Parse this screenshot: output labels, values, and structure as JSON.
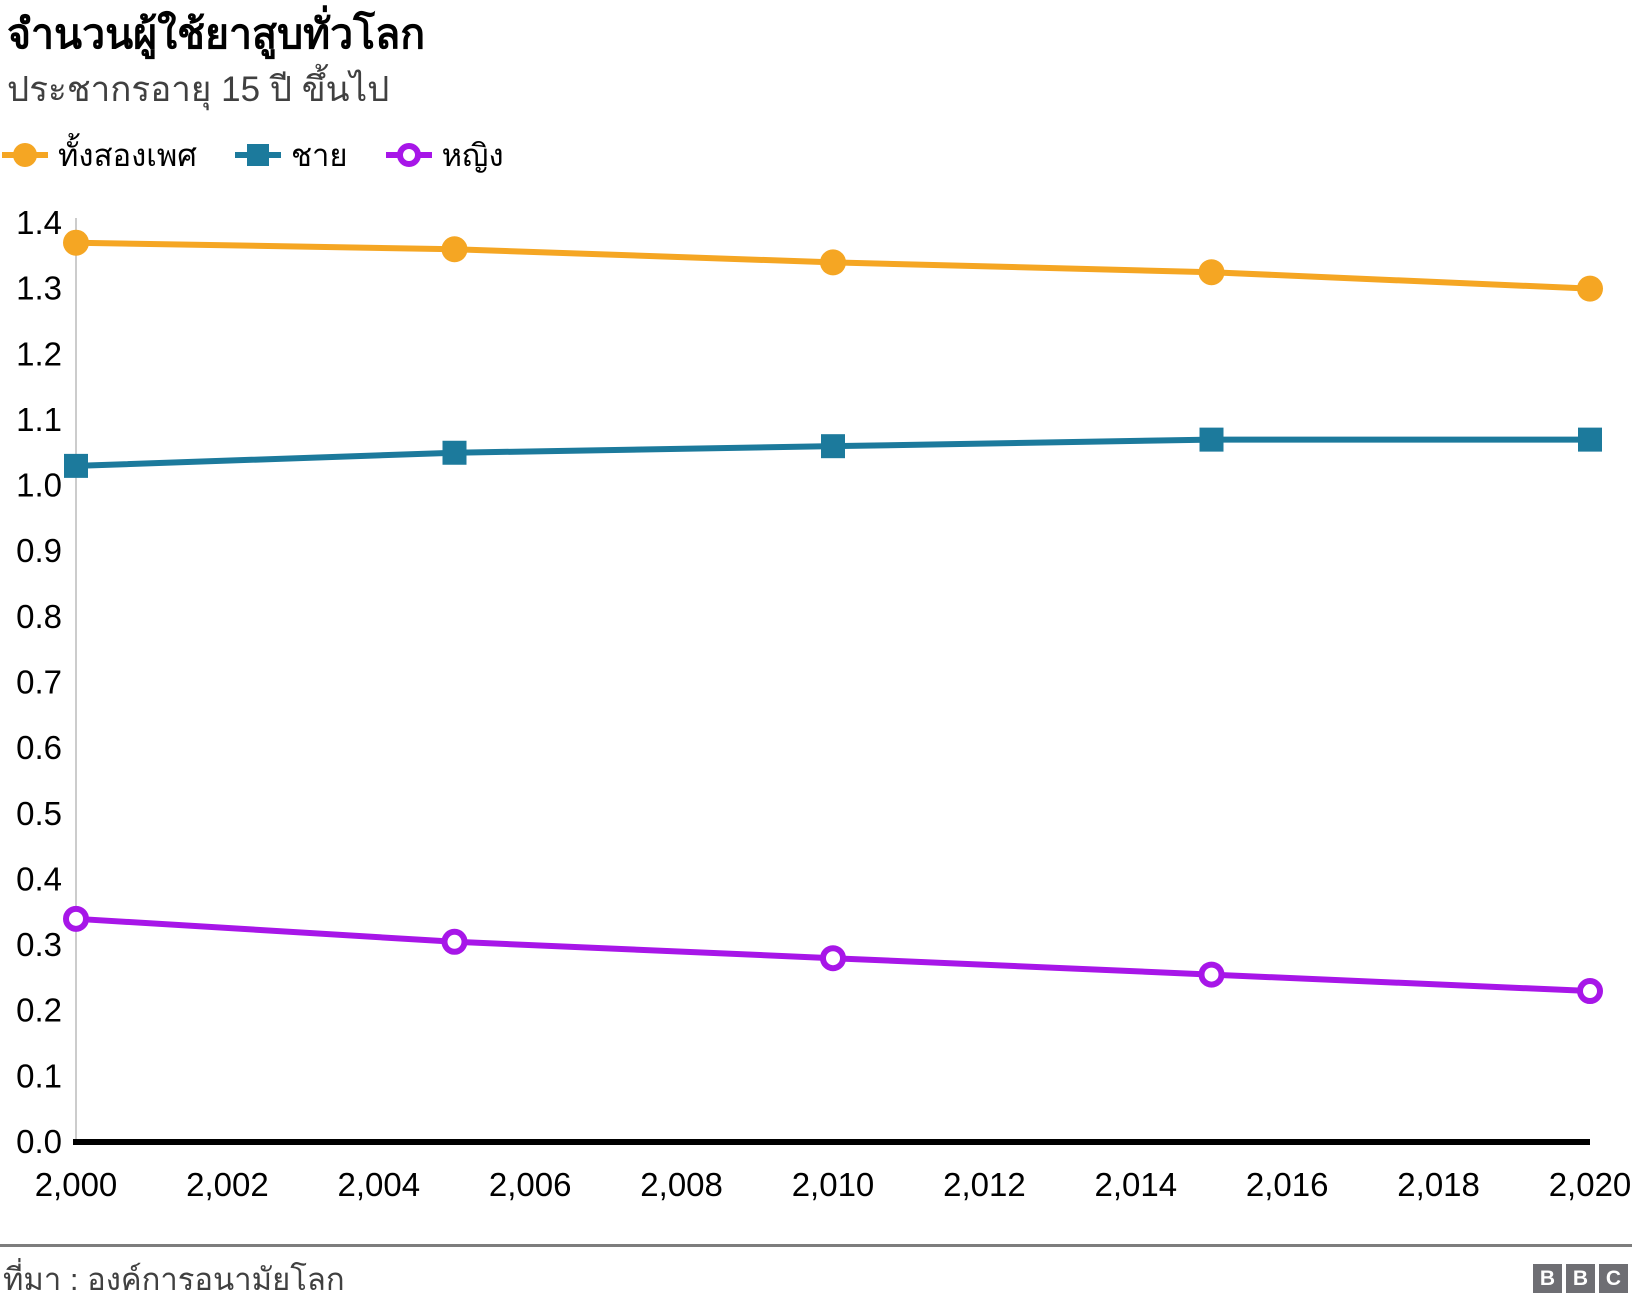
{
  "header": {
    "title": "จำนวนผู้ใช้ยาสูบทั่วโลก",
    "subtitle": "ประชากรอายุ 15 ปี ขึ้นไป"
  },
  "footer": {
    "source": "ที่มา : องค์การอนามัยโลก",
    "logo_letters": [
      "B",
      "B",
      "C"
    ]
  },
  "colors": {
    "both_sexes": "#F5A623",
    "male": "#1C7A9C",
    "female": "#A716E8",
    "y_axis_line": "#CCCCCC",
    "x_axis_line": "#000000",
    "tick_text": "#000000",
    "subtitle_text": "#404040",
    "separator": "#7D7D7D",
    "logo_bg": "#6E6E73"
  },
  "chart_data": {
    "type": "line",
    "title": "จำนวนผู้ใช้ยาสูบทั่วโลก",
    "subtitle": "ประชากรอายุ 15 ปี ขึ้นไป",
    "x": [
      2000,
      2005,
      2010,
      2015,
      2020
    ],
    "series": [
      {
        "name": "ทั้งสองเพศ",
        "marker": "circle-filled",
        "color": "#F5A623",
        "values": [
          1.37,
          1.36,
          1.34,
          1.325,
          1.3
        ]
      },
      {
        "name": "ชาย",
        "marker": "square-filled",
        "color": "#1C7A9C",
        "values": [
          1.03,
          1.05,
          1.06,
          1.07,
          1.07
        ]
      },
      {
        "name": "หญิง",
        "marker": "circle-open",
        "color": "#A716E8",
        "values": [
          0.34,
          0.305,
          0.28,
          0.255,
          0.23
        ]
      }
    ],
    "xlabel": "",
    "ylabel": "",
    "xlim": [
      2000,
      2020
    ],
    "ylim": [
      0,
      1.4
    ],
    "x_tick_step": 2,
    "y_tick_step": 0.1,
    "x_tick_labels": [
      "2,000",
      "2,002",
      "2,004",
      "2,006",
      "2,008",
      "2,010",
      "2,012",
      "2,014",
      "2,016",
      "2,018",
      "2,020"
    ],
    "y_tick_labels": [
      "0.0",
      "0.1",
      "0.2",
      "0.3",
      "0.4",
      "0.5",
      "0.6",
      "0.7",
      "0.8",
      "0.9",
      "1.0",
      "1.1",
      "1.2",
      "1.3",
      "1.4"
    ],
    "grid": false,
    "legend_position": "top-left"
  }
}
